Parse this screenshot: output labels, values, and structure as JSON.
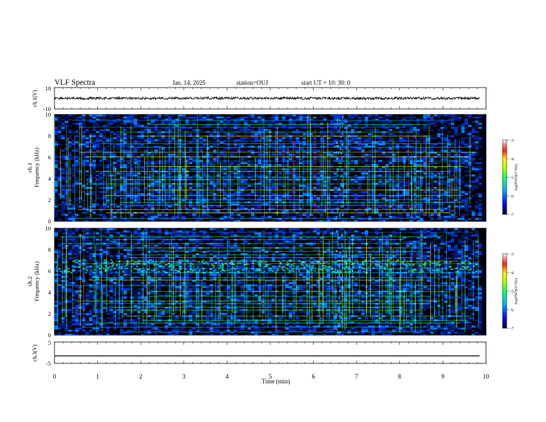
{
  "header": {
    "title": "VLF Spectra",
    "date": "Jan. 14, 2025",
    "station": "station=OUJ",
    "start": "start UT =  10: 30: 0"
  },
  "chart_data": [
    {
      "type": "line",
      "panel": "ch1-waveform",
      "ylabel": "ch.1(V)",
      "ylim": [
        -10,
        10
      ],
      "y_ticks": [
        "10",
        "-10"
      ],
      "xlim": [
        0,
        10
      ],
      "trace_x_end": 9.85,
      "baseline": 0,
      "noise_amplitude": 1.2,
      "color": "#000000"
    },
    {
      "type": "heatmap",
      "panel": "ch1-spectrogram",
      "ylabel": "ch.1\nFrequency (kHz)",
      "ylim": [
        0,
        10
      ],
      "y_ticks": [
        "0",
        "2",
        "4",
        "6",
        "8",
        "10"
      ],
      "xlim": [
        0,
        10
      ],
      "data_x_end": 9.85,
      "color_scale_label": "log(PSD)(V²/Hz)",
      "color_ticks": [
        "-3",
        "-4",
        "-5",
        "-6",
        "-7"
      ],
      "features": [
        "broadband sferics",
        "horizontal narrowband VLF transmitter lines",
        "noise burst near 6.6 min"
      ]
    },
    {
      "type": "heatmap",
      "panel": "ch2-spectrogram",
      "ylabel": "ch.2\nFrequency (kHz)",
      "ylim": [
        0,
        10
      ],
      "y_ticks": [
        "0",
        "2",
        "4",
        "6",
        "8",
        "10"
      ],
      "xlim": [
        0,
        10
      ],
      "data_x_end": 9.85,
      "color_scale_label": "log(PSD)(V²/Hz)",
      "color_ticks": [
        "-3",
        "-4",
        "-5",
        "-6",
        "-7"
      ],
      "features": [
        "broadband sferics",
        "band of enhanced power near 6.5 kHz",
        "noise burst near 6.6 min"
      ]
    },
    {
      "type": "line",
      "panel": "ch3-waveform",
      "ylabel": "ch.3(V)",
      "ylim": [
        -5,
        5
      ],
      "y_ticks": [
        "5",
        "-5"
      ],
      "xlim": [
        0,
        10
      ],
      "trace_x_end": 9.85,
      "baseline": -1.5,
      "color": "#000000"
    }
  ],
  "x_axis": {
    "label": "Time (min)",
    "ticks": [
      "0",
      "1",
      "2",
      "3",
      "4",
      "5",
      "6",
      "7",
      "8",
      "9",
      "10"
    ]
  }
}
